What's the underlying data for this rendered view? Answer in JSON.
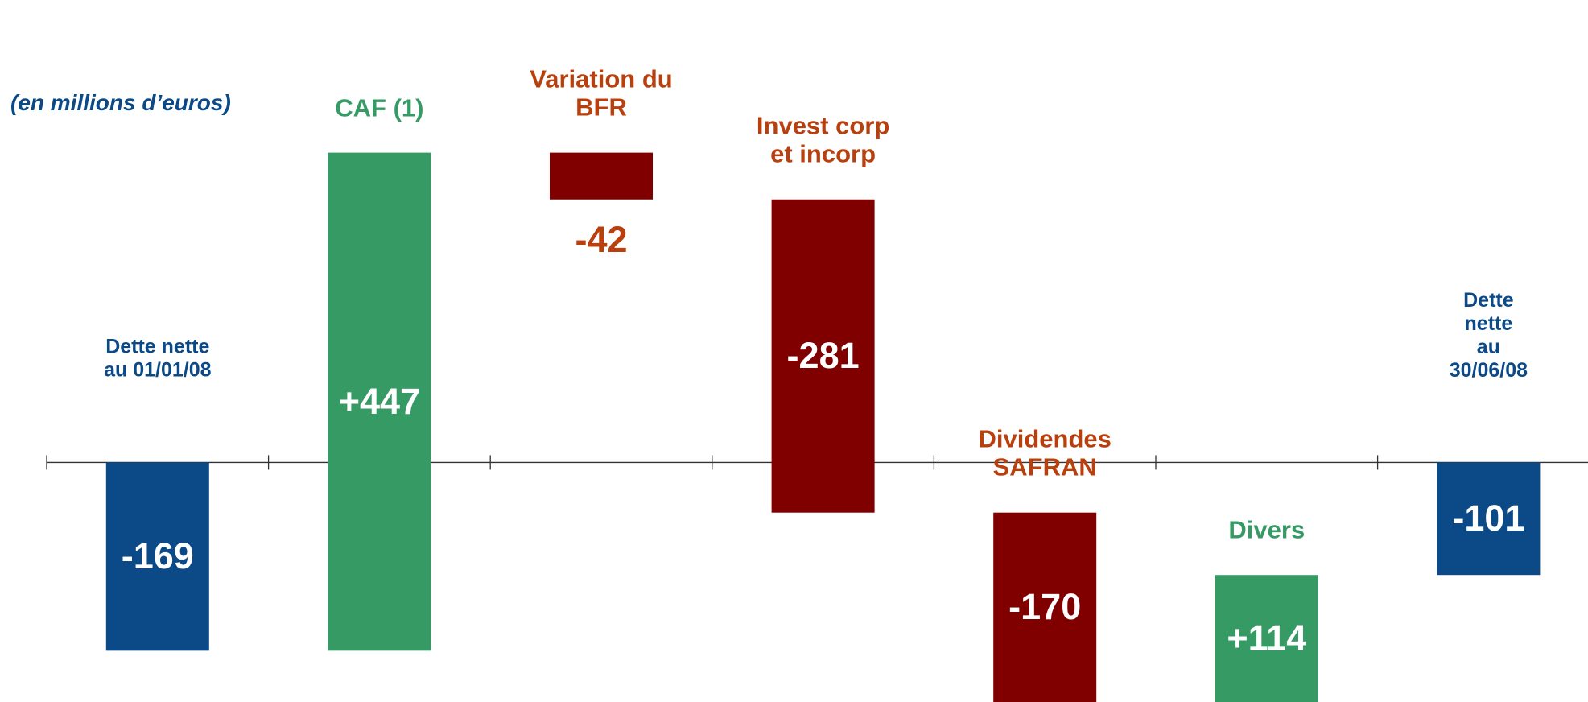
{
  "chart_data": {
    "type": "waterfall",
    "subtitle": "(en millions d’euros)",
    "categories": [
      "Dette nette\nau 01/01/08",
      "CAF (1)",
      "Variation du\nBFR",
      "Invest corp\net incorp",
      "Dividendes\nSAFRAN",
      "Divers",
      "Dette nette\nau 30/06/08"
    ],
    "measure": [
      "absolute",
      "relative",
      "relative",
      "relative",
      "relative",
      "relative",
      "total"
    ],
    "values": [
      -169,
      447,
      -42,
      -281,
      -170,
      114,
      -101
    ],
    "value_labels": [
      "-169",
      "+447",
      "-42",
      "-281",
      "-170",
      "+114",
      "-101"
    ],
    "colors": [
      "#0b4a87",
      "#369a65",
      "#800000",
      "#800000",
      "#800000",
      "#369a65",
      "#0b4a87"
    ],
    "label_colors": [
      "#0b4a87",
      "#369a65",
      "#b8400f",
      "#b8400f",
      "#b8400f",
      "#369a65",
      "#0b4a87"
    ],
    "ylim": [
      -215,
      415
    ]
  }
}
